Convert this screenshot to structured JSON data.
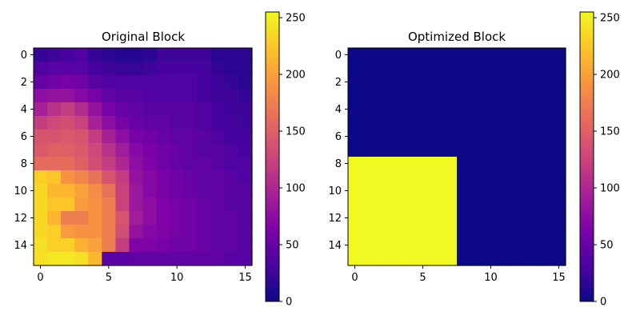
{
  "chart_data": [
    {
      "type": "heatmap",
      "title": "Original Block",
      "colormap": "plasma",
      "vmin": 0,
      "vmax": 255,
      "xticks": [
        0,
        5,
        10,
        15
      ],
      "yticks": [
        0,
        2,
        4,
        6,
        8,
        10,
        12,
        14
      ],
      "colorbar_ticks": [
        0,
        50,
        100,
        150,
        200,
        250
      ],
      "values": [
        [
          20,
          25,
          30,
          35,
          20,
          15,
          12,
          12,
          15,
          25,
          25,
          25,
          25,
          15,
          15,
          15
        ],
        [
          35,
          40,
          40,
          40,
          30,
          25,
          22,
          22,
          25,
          30,
          30,
          30,
          30,
          20,
          15,
          15
        ],
        [
          50,
          55,
          60,
          55,
          40,
          35,
          35,
          35,
          35,
          35,
          35,
          35,
          30,
          25,
          20,
          15
        ],
        [
          75,
          80,
          80,
          70,
          60,
          45,
          40,
          40,
          35,
          35,
          35,
          35,
          30,
          25,
          25,
          20
        ],
        [
          95,
          110,
          120,
          105,
          80,
          60,
          50,
          45,
          40,
          40,
          40,
          40,
          35,
          30,
          25,
          25
        ],
        [
          120,
          130,
          135,
          125,
          95,
          75,
          60,
          50,
          45,
          45,
          40,
          40,
          35,
          30,
          30,
          25
        ],
        [
          140,
          140,
          145,
          140,
          120,
          95,
          75,
          60,
          55,
          50,
          45,
          45,
          40,
          35,
          30,
          30
        ],
        [
          145,
          150,
          150,
          145,
          130,
          110,
          90,
          70,
          60,
          55,
          50,
          45,
          40,
          40,
          35,
          30
        ],
        [
          160,
          160,
          160,
          150,
          135,
          120,
          100,
          75,
          65,
          55,
          50,
          45,
          45,
          40,
          35,
          35
        ],
        [
          230,
          225,
          190,
          180,
          165,
          140,
          120,
          80,
          70,
          60,
          55,
          50,
          45,
          45,
          40,
          35
        ],
        [
          235,
          215,
          215,
          200,
          185,
          165,
          125,
          85,
          70,
          60,
          55,
          50,
          45,
          45,
          40,
          40
        ],
        [
          235,
          225,
          225,
          195,
          190,
          175,
          125,
          85,
          75,
          65,
          60,
          55,
          50,
          45,
          40,
          40
        ],
        [
          235,
          215,
          175,
          175,
          190,
          175,
          140,
          90,
          75,
          65,
          60,
          55,
          50,
          45,
          45,
          40
        ],
        [
          235,
          230,
          195,
          190,
          190,
          175,
          135,
          80,
          70,
          65,
          60,
          55,
          50,
          45,
          45,
          40
        ],
        [
          240,
          230,
          230,
          210,
          200,
          175,
          120,
          65,
          65,
          60,
          55,
          55,
          50,
          45,
          45,
          40
        ],
        [
          240,
          245,
          245,
          240,
          215,
          40,
          40,
          45,
          45,
          45,
          45,
          45,
          45,
          45,
          40,
          40
        ]
      ]
    },
    {
      "type": "heatmap",
      "title": "Optimized Block",
      "colormap": "plasma",
      "vmin": 0,
      "vmax": 255,
      "xticks": [
        0,
        5,
        10,
        15
      ],
      "yticks": [
        0,
        2,
        4,
        6,
        8,
        10,
        12,
        14
      ],
      "colorbar_ticks": [
        0,
        50,
        100,
        150,
        200,
        250
      ],
      "values": [
        [
          0,
          0,
          0,
          0,
          0,
          0,
          0,
          0,
          0,
          0,
          0,
          0,
          0,
          0,
          0,
          0
        ],
        [
          0,
          0,
          0,
          0,
          0,
          0,
          0,
          0,
          0,
          0,
          0,
          0,
          0,
          0,
          0,
          0
        ],
        [
          0,
          0,
          0,
          0,
          0,
          0,
          0,
          0,
          0,
          0,
          0,
          0,
          0,
          0,
          0,
          0
        ],
        [
          0,
          0,
          0,
          0,
          0,
          0,
          0,
          0,
          0,
          0,
          0,
          0,
          0,
          0,
          0,
          0
        ],
        [
          0,
          0,
          0,
          0,
          0,
          0,
          0,
          0,
          0,
          0,
          0,
          0,
          0,
          0,
          0,
          0
        ],
        [
          0,
          0,
          0,
          0,
          0,
          0,
          0,
          0,
          0,
          0,
          0,
          0,
          0,
          0,
          0,
          0
        ],
        [
          0,
          0,
          0,
          0,
          0,
          0,
          0,
          0,
          0,
          0,
          0,
          0,
          0,
          0,
          0,
          0
        ],
        [
          0,
          0,
          0,
          0,
          0,
          0,
          0,
          0,
          0,
          0,
          0,
          0,
          0,
          0,
          0,
          0
        ],
        [
          255,
          255,
          255,
          255,
          255,
          255,
          255,
          255,
          0,
          0,
          0,
          0,
          0,
          0,
          0,
          0
        ],
        [
          255,
          255,
          255,
          255,
          255,
          255,
          255,
          255,
          0,
          0,
          0,
          0,
          0,
          0,
          0,
          0
        ],
        [
          255,
          255,
          255,
          255,
          255,
          255,
          255,
          255,
          0,
          0,
          0,
          0,
          0,
          0,
          0,
          0
        ],
        [
          255,
          255,
          255,
          255,
          255,
          255,
          255,
          255,
          0,
          0,
          0,
          0,
          0,
          0,
          0,
          0
        ],
        [
          255,
          255,
          255,
          255,
          255,
          255,
          255,
          255,
          0,
          0,
          0,
          0,
          0,
          0,
          0,
          0
        ],
        [
          255,
          255,
          255,
          255,
          255,
          255,
          255,
          255,
          0,
          0,
          0,
          0,
          0,
          0,
          0,
          0
        ],
        [
          255,
          255,
          255,
          255,
          255,
          255,
          255,
          255,
          0,
          0,
          0,
          0,
          0,
          0,
          0,
          0
        ],
        [
          255,
          255,
          255,
          255,
          255,
          255,
          255,
          255,
          0,
          0,
          0,
          0,
          0,
          0,
          0,
          0
        ]
      ]
    }
  ]
}
